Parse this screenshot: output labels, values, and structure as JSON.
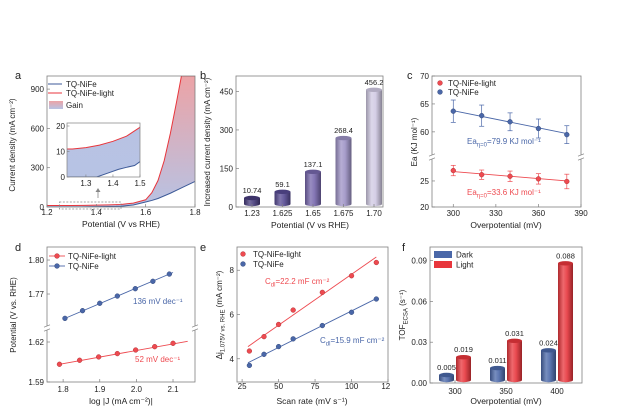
{
  "colors": {
    "blue": "#3d5a98",
    "blue_marker": "#4a67a8",
    "red": "#e8363c",
    "red_marker": "#ee4a50",
    "axis": "#7f7f7f",
    "gain_top": "#eca3a6",
    "gain_bottom": "#b7c3e4"
  },
  "chart_data": [
    {
      "panel": "a",
      "type": "line",
      "xlabel": "Potential (V vs RHE)",
      "ylabel": "Current density (mA cm⁻²)",
      "xlim": [
        1.2,
        1.8
      ],
      "ylim": [
        0,
        1000
      ],
      "xticks": [
        "1.2",
        "1.4",
        "1.6",
        "1.8"
      ],
      "yticks": [
        "0",
        "300",
        "600",
        "900"
      ],
      "grid": false,
      "legend_position": "top-left",
      "series": [
        {
          "name": "TQ-NiFe",
          "color": "#3d5a98",
          "x": [
            1.2,
            1.3,
            1.34,
            1.38,
            1.42,
            1.45,
            1.48,
            1.5,
            1.55,
            1.6,
            1.625,
            1.65,
            1.675,
            1.7,
            1.75,
            1.8
          ],
          "y": [
            0,
            0,
            0,
            1.5,
            3,
            3.8,
            4.5,
            6,
            15,
            38,
            50,
            65,
            85,
            105,
            150,
            195
          ]
        },
        {
          "name": "TQ-NiFe-light",
          "color": "#e8363c",
          "x": [
            1.2,
            1.25,
            1.3,
            1.35,
            1.4,
            1.45,
            1.5,
            1.55,
            1.6,
            1.625,
            1.65,
            1.675,
            1.7,
            1.725,
            1.745,
            1.8
          ],
          "y": [
            11,
            11,
            11.5,
            12.5,
            14,
            16,
            19.5,
            30,
            55,
            109,
            202,
            353,
            561,
            800,
            1000,
            1000
          ]
        }
      ],
      "fill": {
        "name": "Gain"
      },
      "inset": {
        "xlim": [
          1.23,
          1.5
        ],
        "ylim": [
          0,
          20
        ],
        "xticks": [
          "1.3",
          "1.4",
          "1.5"
        ],
        "yticks": [
          "0",
          "10",
          "20"
        ]
      }
    },
    {
      "panel": "b",
      "type": "bar",
      "xlabel": "Potential (V vs RHE)",
      "ylabel": "Increased current density (mA cm⁻²)",
      "categories": [
        "1.23",
        "1.625",
        "1.65",
        "1.675",
        "1.70"
      ],
      "values": [
        10.74,
        59.1,
        137.1,
        268.4,
        456.2
      ],
      "value_labels": [
        "10.74",
        "59.1",
        "137.1",
        "268.4",
        "456.2"
      ],
      "bar_colors": [
        "#463b7c",
        "#564a92",
        "#7667ac",
        "#9d92c5",
        "#d0c9e3"
      ],
      "ylim": [
        0,
        510
      ],
      "yticks": [
        "0",
        "150",
        "300",
        "450"
      ]
    },
    {
      "panel": "c",
      "type": "scatter",
      "xlabel": "Overpotential (mV)",
      "ylabel": "Ea (KJ mol⁻¹)",
      "xlim": [
        285,
        390
      ],
      "y_segments": [
        [
          20,
          29.6
        ],
        [
          55.5,
          70
        ]
      ],
      "xticks": [
        "300",
        "330",
        "360",
        "390"
      ],
      "yticks": [
        "20",
        "25",
        "60",
        "65",
        "70"
      ],
      "legend_position": "top-left",
      "series": [
        {
          "name": "TQ-NiFe-light",
          "color": "#ee4a50",
          "x": [
            300,
            320,
            340,
            360,
            380
          ],
          "y": [
            27.0,
            26.2,
            25.9,
            25.4,
            24.9
          ],
          "error": [
            1.0,
            0.9,
            1.0,
            1.0,
            1.4
          ],
          "fit": [
            [
              300,
              26.8
            ],
            [
              380,
              25.0
            ]
          ],
          "annotation": [
            {
              "text": "Ea"
            },
            {
              "text": "η=0",
              "sub": true
            },
            {
              "text": "=33.6 KJ mol⁻¹"
            }
          ]
        },
        {
          "name": "TQ-NiFe",
          "color": "#4a67a8",
          "x": [
            300,
            320,
            340,
            360,
            380
          ],
          "y": [
            63.7,
            62.9,
            61.8,
            60.6,
            59.5
          ],
          "error": [
            2.0,
            1.9,
            1.6,
            1.7,
            1.6
          ],
          "fit": [
            [
              300,
              63.8
            ],
            [
              380,
              59.7
            ]
          ],
          "annotation": [
            {
              "text": "Ea"
            },
            {
              "text": "η=0",
              "sub": true
            },
            {
              "text": "=79.9 KJ mol⁻¹"
            }
          ]
        }
      ]
    },
    {
      "panel": "d",
      "type": "scatter",
      "xlabel": "log |J (mA cm⁻²)|",
      "ylabel": "Potential (V vs. RHE)",
      "xlim": [
        1.756,
        2.16
      ],
      "y_segments": [
        [
          1.59,
          1.6305
        ],
        [
          1.74,
          1.8115
        ]
      ],
      "xticks": [
        "1.8",
        "1.9",
        "2.0",
        "2.1"
      ],
      "yticks": [
        "1.59",
        "1.62",
        "1.77",
        "1.80"
      ],
      "legend_position": "top-left",
      "series": [
        {
          "name": "TQ-NiFe-light",
          "color": "#ee4a50",
          "x": [
            1.79,
            1.845,
            1.897,
            1.948,
            1.998,
            2.05,
            2.1
          ],
          "y": [
            1.6033,
            1.6063,
            1.6088,
            1.6113,
            1.614,
            1.6165,
            1.619
          ],
          "fit": [
            [
              1.79,
              1.6033
            ],
            [
              2.14,
              1.6205
            ]
          ],
          "annotation": "52 mV dec⁻¹"
        },
        {
          "name": "TQ-NiFe",
          "color": "#4a67a8",
          "x": [
            1.805,
            1.853,
            1.9,
            1.948,
            1.997,
            2.045,
            2.09
          ],
          "y": [
            1.7485,
            1.7553,
            1.7618,
            1.7682,
            1.7747,
            1.7812,
            1.7876
          ],
          "fit": [
            [
              1.805,
              1.7485
            ],
            [
              2.1,
              1.789
            ]
          ],
          "annotation": "136 mV dec⁻¹"
        }
      ]
    },
    {
      "panel": "e",
      "type": "scatter",
      "xlabel": "Scan rate (mV s⁻¹)",
      "ylabel_parts": [
        {
          "text": "Δj"
        },
        {
          "text": "1.075V vs. RHE",
          "sub": true
        },
        {
          "text": " (mA cm⁻²)"
        }
      ],
      "xlim": [
        21.5,
        125
      ],
      "ylim": [
        2.95,
        9.05
      ],
      "xticks": [
        "25",
        "50",
        "75",
        "100",
        "125"
      ],
      "yticks": [
        "4",
        "6",
        "8"
      ],
      "legend_position": "top-left",
      "series": [
        {
          "name": "TQ-NiFe-light",
          "color": "#ee4a50",
          "x": [
            30,
            40,
            50,
            60,
            80,
            100,
            117
          ],
          "y": [
            4.35,
            5.0,
            5.55,
            6.2,
            7.0,
            7.75,
            8.35
          ],
          "fit": [
            [
              29,
              4.55
            ],
            [
              117,
              8.6
            ]
          ],
          "annotation": [
            {
              "text": "C"
            },
            {
              "text": "dl",
              "sub": true
            },
            {
              "text": "=22.2 mF cm⁻²"
            }
          ]
        },
        {
          "name": "TQ-NiFe",
          "color": "#4a67a8",
          "x": [
            30,
            40,
            50,
            60,
            80,
            100,
            117
          ],
          "y": [
            3.7,
            4.2,
            4.55,
            4.9,
            5.5,
            6.1,
            6.7
          ],
          "fit": [
            [
              29,
              3.82
            ],
            [
              117,
              6.72
            ]
          ],
          "annotation": [
            {
              "text": "C"
            },
            {
              "text": "dl",
              "sub": true
            },
            {
              "text": "=15.9 mF cm⁻²"
            }
          ]
        }
      ]
    },
    {
      "panel": "f",
      "type": "bar",
      "xlabel": "Overpotential (mV)",
      "ylabel_parts": [
        {
          "text": "TOF"
        },
        {
          "text": "ECSA",
          "sub": true
        },
        {
          "text": " (s⁻¹)"
        }
      ],
      "categories": [
        "300",
        "350",
        "400"
      ],
      "ylim": [
        0,
        0.1
      ],
      "yticks": [
        "0.00",
        "0.03",
        "0.06",
        "0.09"
      ],
      "legend_position": "top-left",
      "series": [
        {
          "name": "Dark",
          "color": "#4a67a8",
          "values": [
            0.005,
            0.011,
            0.024
          ],
          "value_labels": [
            "0.005",
            "0.011",
            "0.024"
          ]
        },
        {
          "name": "Light",
          "color": "#e8363c",
          "values": [
            0.019,
            0.031,
            0.088
          ],
          "value_labels": [
            "0.019",
            "0.031",
            "0.088"
          ]
        }
      ]
    }
  ]
}
